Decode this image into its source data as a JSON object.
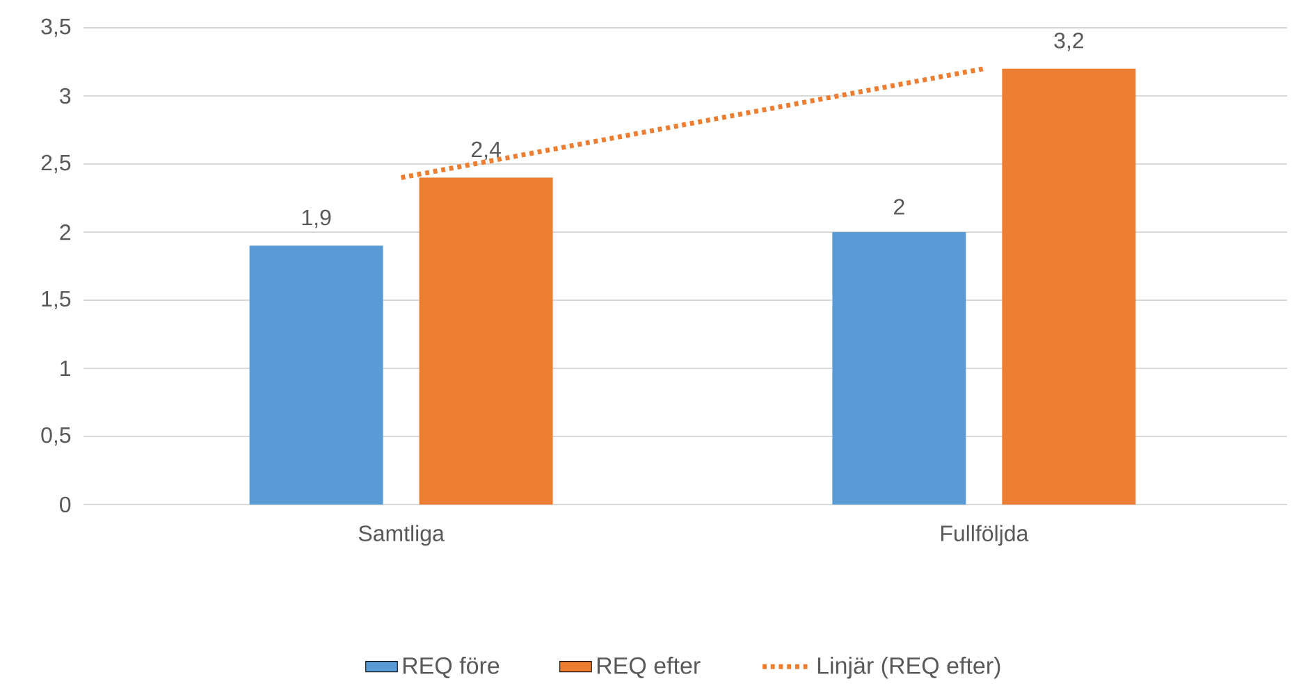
{
  "chart_data": {
    "type": "bar",
    "categories": [
      "Samtliga",
      "Fullföljda"
    ],
    "series": [
      {
        "name": "REQ före",
        "color": "#5b9bd5",
        "values": [
          1.9,
          2
        ],
        "value_labels": [
          "1,9",
          "2"
        ]
      },
      {
        "name": "REQ efter",
        "color": "#ed7d31",
        "values": [
          2.4,
          3.2
        ],
        "value_labels": [
          "2,4",
          "3,2"
        ]
      },
      {
        "name": "Linjär (REQ efter)",
        "type": "line",
        "color": "#ed7d31",
        "line_style": "dotted",
        "values": [
          2.4,
          3.2
        ]
      }
    ],
    "ylim": [
      0,
      3.5
    ],
    "yticks": [
      0,
      {
        "value": 0.5,
        "label": "0,5"
      },
      1,
      {
        "value": 1.5,
        "label": "1,5"
      },
      2,
      {
        "value": 2.5,
        "label": "2,5"
      },
      3,
      {
        "value": 3.5,
        "label": "3,5"
      }
    ],
    "grid": "y",
    "legend": "bottom"
  }
}
